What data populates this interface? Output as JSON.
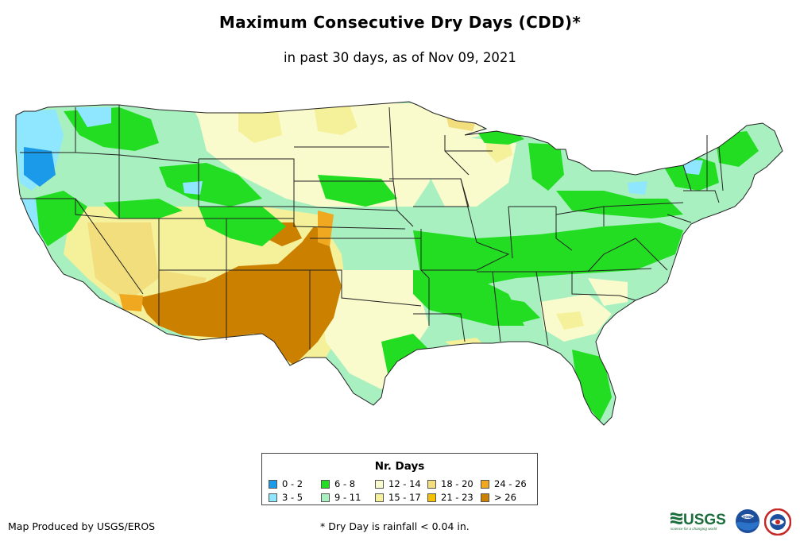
{
  "header": {
    "title": "Maximum Consecutive Dry Days (CDD)*",
    "subtitle": "in past 30 days, as of Nov 09, 2021"
  },
  "legend": {
    "title": "Nr. Days",
    "items": [
      {
        "label": "0 - 2",
        "color": "#1a9ae8"
      },
      {
        "label": "3 - 5",
        "color": "#8ee6ff"
      },
      {
        "label": "6 - 8",
        "color": "#22dd22"
      },
      {
        "label": "9 - 11",
        "color": "#a8f0c0"
      },
      {
        "label": "12 - 14",
        "color": "#fafbcd"
      },
      {
        "label": "15 - 17",
        "color": "#f5f09a"
      },
      {
        "label": "18 - 20",
        "color": "#f2de7c"
      },
      {
        "label": "21 - 23",
        "color": "#f5c000"
      },
      {
        "label": "24 - 26",
        "color": "#f0a820"
      },
      {
        "label": "> 26",
        "color": "#cc8000"
      }
    ]
  },
  "footer": {
    "credit": "Map Produced by USGS/EROS",
    "footnote": "* Dry Day is rainfall < 0.04 in.",
    "usgs_logo_text": "USGS",
    "usgs_tagline": "science for a changing world",
    "noaa_logo_text": "noaa"
  },
  "colors": {
    "state_border": "#222222",
    "water": "#ffffff"
  }
}
